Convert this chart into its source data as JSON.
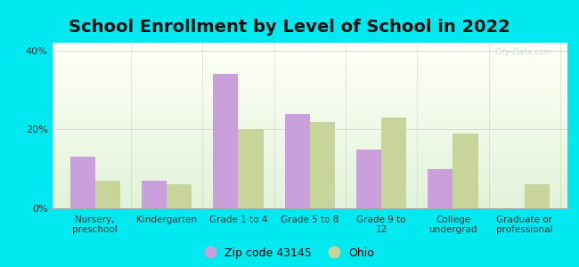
{
  "title": "School Enrollment by Level of School in 2022",
  "categories": [
    "Nursery,\npreschool",
    "Kindergarten",
    "Grade 1 to 4",
    "Grade 5 to 8",
    "Grade 9 to\n12",
    "College\nundergrad",
    "Graduate or\nprofessional"
  ],
  "zip_values": [
    13,
    7,
    34,
    24,
    15,
    10,
    0
  ],
  "ohio_values": [
    7,
    6,
    20,
    22,
    23,
    19,
    6
  ],
  "zip_color": "#c9a0dc",
  "ohio_color": "#c8d49a",
  "ylim": [
    0,
    42
  ],
  "yticks": [
    0,
    20,
    40
  ],
  "ytick_labels": [
    "0%",
    "20%",
    "40%"
  ],
  "background_outer": "#00e8f0",
  "legend_zip_label": "Zip code 43145",
  "legend_ohio_label": "Ohio",
  "watermark": "City-Data.com",
  "title_fontsize": 14,
  "bar_width": 0.35
}
